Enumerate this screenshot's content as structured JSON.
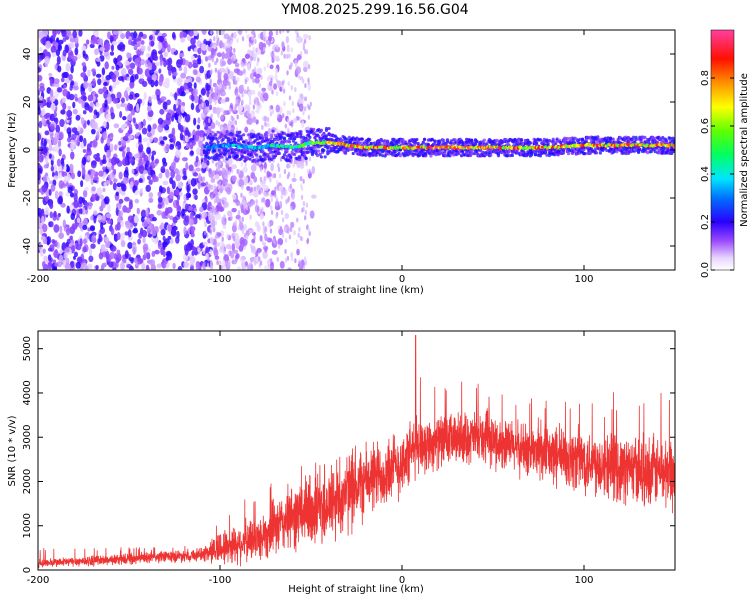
{
  "title": "YM08.2025.299.16.56.G04",
  "chart_data": [
    {
      "type": "heatmap",
      "name": "spectrogram",
      "xlabel": "Height of straight line (km)",
      "ylabel": "Frequency (Hz)",
      "xlim": [
        -200,
        150
      ],
      "ylim": [
        -50,
        50
      ],
      "xticks": [
        -200,
        -100,
        0,
        100
      ],
      "xtick_labels": [
        "-200",
        "-100",
        "0",
        "100"
      ],
      "yticks": [
        -40,
        -20,
        0,
        20,
        40
      ],
      "ytick_labels": [
        "-40",
        "-20",
        "0",
        "20",
        "40"
      ],
      "colorbar": {
        "label": "Normalized spectral amplitude",
        "range": [
          0,
          1
        ],
        "ticks": [
          0,
          0.2,
          0.4,
          0.6,
          0.8
        ],
        "tick_labels": [
          "0.0",
          "0.2",
          "0.4",
          "0.6",
          "0.8"
        ],
        "colormap": [
          "#ffffff",
          "#d9b3ff",
          "#7a2cff",
          "#2a00ff",
          "#00e5ff",
          "#00ff40",
          "#ffff00",
          "#ff8000",
          "#ff0000",
          "#ff0080"
        ]
      },
      "signal_track": {
        "x": [
          -108,
          -95,
          -80,
          -70,
          -60,
          -50,
          -40,
          -30,
          -20,
          -10,
          0,
          20,
          40,
          60,
          80,
          100,
          120,
          150
        ],
        "freq_hz": [
          1,
          2,
          1,
          2,
          1,
          3,
          3,
          2,
          1,
          1,
          1,
          1,
          1,
          1,
          1,
          2,
          2,
          2
        ],
        "peak_amplitude": [
          0.35,
          0.4,
          0.45,
          0.5,
          0.55,
          0.6,
          0.75,
          0.85,
          0.9,
          0.85,
          0.8,
          0.95,
          0.9,
          0.9,
          0.88,
          0.85,
          0.9,
          0.85
        ]
      },
      "noise_region": {
        "x_start": -200,
        "x_end": -105,
        "density": "high"
      }
    },
    {
      "type": "line",
      "name": "snr",
      "xlabel": "Height of straight line (km)",
      "ylabel": "SNR (10 * v/v)",
      "xlim": [
        -200,
        150
      ],
      "ylim": [
        0,
        5400
      ],
      "xticks": [
        -200,
        -100,
        0,
        100
      ],
      "xtick_labels": [
        "-200",
        "-100",
        "0",
        "100"
      ],
      "yticks": [
        0,
        1000,
        2000,
        3000,
        4000,
        5000
      ],
      "ytick_labels": [
        "0",
        "1000",
        "2000",
        "3000",
        "4000",
        "5000"
      ],
      "color": "#ee3333",
      "envelope": {
        "x": [
          -200,
          -150,
          -110,
          -100,
          -80,
          -60,
          -40,
          -20,
          0,
          8,
          20,
          40,
          60,
          80,
          100,
          120,
          150
        ],
        "mean": [
          150,
          250,
          350,
          500,
          700,
          1200,
          1500,
          2000,
          2400,
          2800,
          2900,
          3000,
          2800,
          2600,
          2500,
          2300,
          2200
        ],
        "spread": [
          120,
          150,
          180,
          500,
          600,
          900,
          1200,
          1000,
          900,
          800,
          700,
          700,
          700,
          800,
          900,
          900,
          1000
        ],
        "max": [
          500,
          520,
          560,
          1200,
          1800,
          2300,
          2700,
          3000,
          3500,
          5300,
          4200,
          4300,
          4000,
          3900,
          4100,
          4000,
          4400
        ]
      }
    }
  ]
}
